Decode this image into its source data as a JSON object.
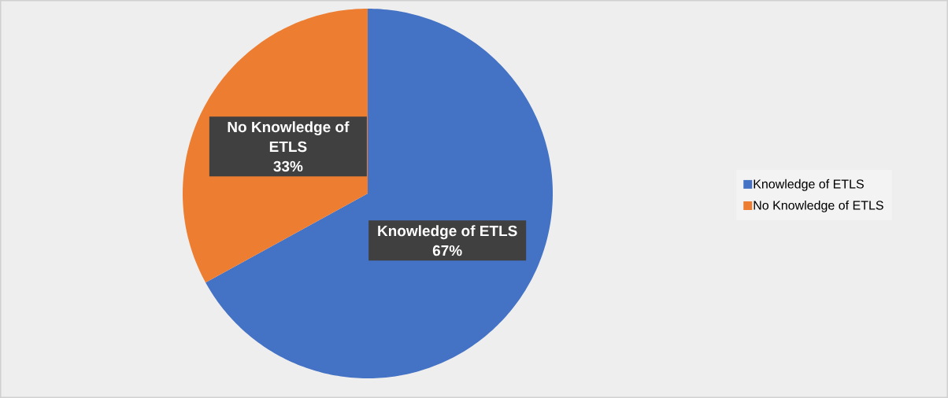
{
  "chart_data": {
    "type": "pie",
    "categories": [
      "Knowledge of ETLS",
      "No Knowledge of ETLS"
    ],
    "values": [
      67,
      33
    ],
    "colors": [
      "#4472c4",
      "#ed7d31"
    ],
    "value_labels": [
      "67%",
      "33%"
    ],
    "legend": "right"
  }
}
